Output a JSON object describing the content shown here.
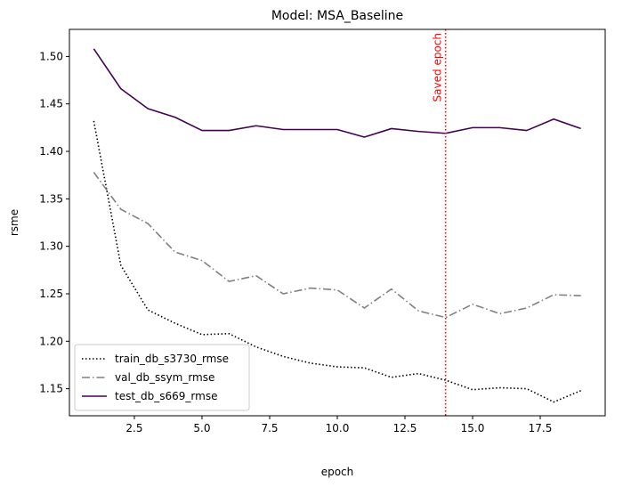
{
  "chart_data": {
    "type": "line",
    "title": "Model: MSA_Baseline",
    "xlabel": "epoch",
    "ylabel": "rsme",
    "xlim": [
      0.1,
      19.9
    ],
    "ylim": [
      1.1215,
      1.5285
    ],
    "x_ticks": [
      2.5,
      5.0,
      7.5,
      10.0,
      12.5,
      15.0,
      17.5
    ],
    "x_tick_labels": [
      "2.5",
      "5.0",
      "7.5",
      "10.0",
      "12.5",
      "15.0",
      "17.5"
    ],
    "y_ticks": [
      1.15,
      1.2,
      1.25,
      1.3,
      1.35,
      1.4,
      1.45,
      1.5
    ],
    "y_tick_labels": [
      "1.15",
      "1.20",
      "1.25",
      "1.30",
      "1.35",
      "1.40",
      "1.45",
      "1.50"
    ],
    "grid": false,
    "legend_position": "lower-left",
    "x": [
      1,
      2,
      3,
      4,
      5,
      6,
      7,
      8,
      9,
      10,
      11,
      12,
      13,
      14,
      15,
      16,
      17,
      18,
      19
    ],
    "series": [
      {
        "name": "train_db_s3730_rmse",
        "color": "#000000",
        "dash": "dotted",
        "values": [
          1.432,
          1.28,
          1.233,
          1.219,
          1.207,
          1.208,
          1.194,
          1.184,
          1.177,
          1.173,
          1.172,
          1.162,
          1.166,
          1.159,
          1.149,
          1.151,
          1.15,
          1.136,
          1.148
        ]
      },
      {
        "name": "val_db_ssym_rmse",
        "color": "#808080",
        "dash": "dashdot",
        "values": [
          1.378,
          1.339,
          1.324,
          1.294,
          1.285,
          1.263,
          1.269,
          1.25,
          1.256,
          1.254,
          1.235,
          1.255,
          1.232,
          1.225,
          1.239,
          1.229,
          1.235,
          1.249,
          1.248
        ]
      },
      {
        "name": "test_db_s669_rmse",
        "color": "#440154",
        "dash": "solid",
        "values": [
          1.508,
          1.466,
          1.445,
          1.436,
          1.422,
          1.422,
          1.427,
          1.423,
          1.423,
          1.423,
          1.415,
          1.424,
          1.421,
          1.419,
          1.425,
          1.425,
          1.422,
          1.434,
          1.424
        ]
      }
    ],
    "annotations": [
      {
        "type": "vline",
        "x": 14,
        "color": "#ff0000",
        "dash": "dotted",
        "label": "Saved epoch"
      }
    ]
  }
}
